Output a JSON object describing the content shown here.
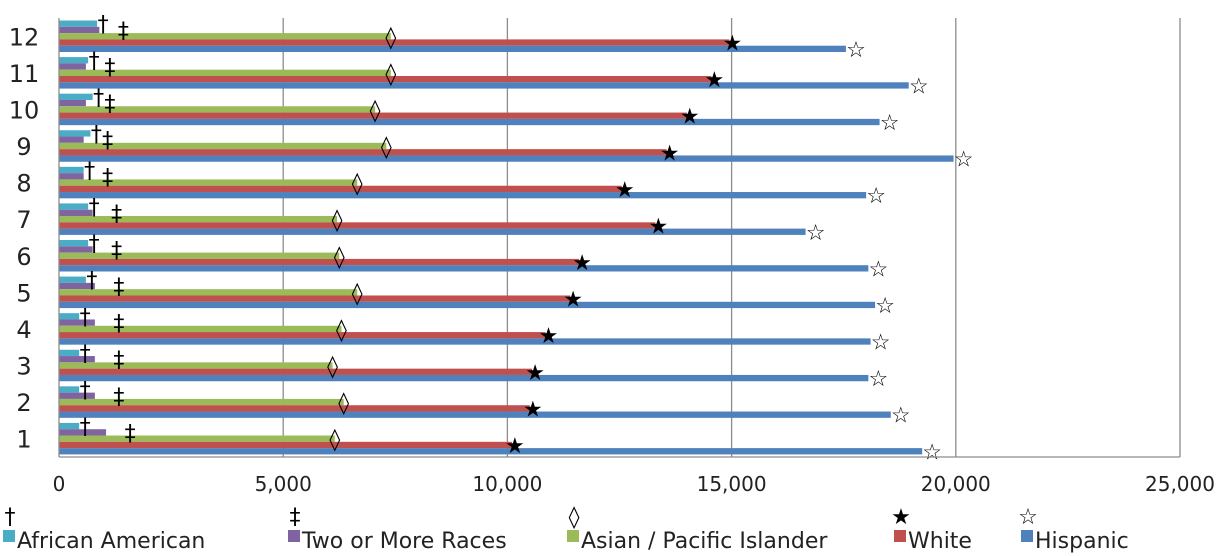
{
  "chart_data": {
    "type": "bar",
    "orientation": "horizontal",
    "categories": [
      "1",
      "2",
      "3",
      "4",
      "5",
      "6",
      "7",
      "8",
      "9",
      "10",
      "11",
      "12"
    ],
    "xlim": [
      0,
      25000
    ],
    "xticks": [
      0,
      5000,
      10000,
      15000,
      20000,
      25000
    ],
    "xtick_labels": [
      "0",
      "5,000",
      "10,000",
      "15,000",
      "20,000",
      "25,000"
    ],
    "grid": true,
    "legend_position": "bottom",
    "series": [
      {
        "name": "African American",
        "color": "#4bacc6",
        "marker": "†",
        "values": [
          450,
          450,
          450,
          450,
          600,
          650,
          650,
          550,
          700,
          750,
          650,
          850
        ]
      },
      {
        "name": "Two or More Races",
        "color": "#8064a2",
        "marker": "‡",
        "values": [
          1050,
          800,
          800,
          800,
          800,
          750,
          750,
          550,
          550,
          600,
          600,
          900
        ]
      },
      {
        "name": "Asian / Pacific Islander",
        "color": "#9bbb59",
        "marker": "◊",
        "values": [
          6150,
          6350,
          6100,
          6300,
          6650,
          6250,
          6200,
          6650,
          7300,
          7050,
          7400,
          7400
        ]
      },
      {
        "name": "White",
        "color": "#c0504d",
        "marker": "★",
        "values": [
          10100,
          10500,
          10550,
          10850,
          11400,
          11600,
          13300,
          12550,
          13550,
          14000,
          14550,
          14950
        ]
      },
      {
        "name": "Hispanic",
        "color": "#4f81bd",
        "marker": "☆",
        "values": [
          19250,
          18550,
          18050,
          18100,
          18200,
          18050,
          16650,
          18000,
          19950,
          18300,
          18950,
          17550
        ]
      }
    ]
  }
}
